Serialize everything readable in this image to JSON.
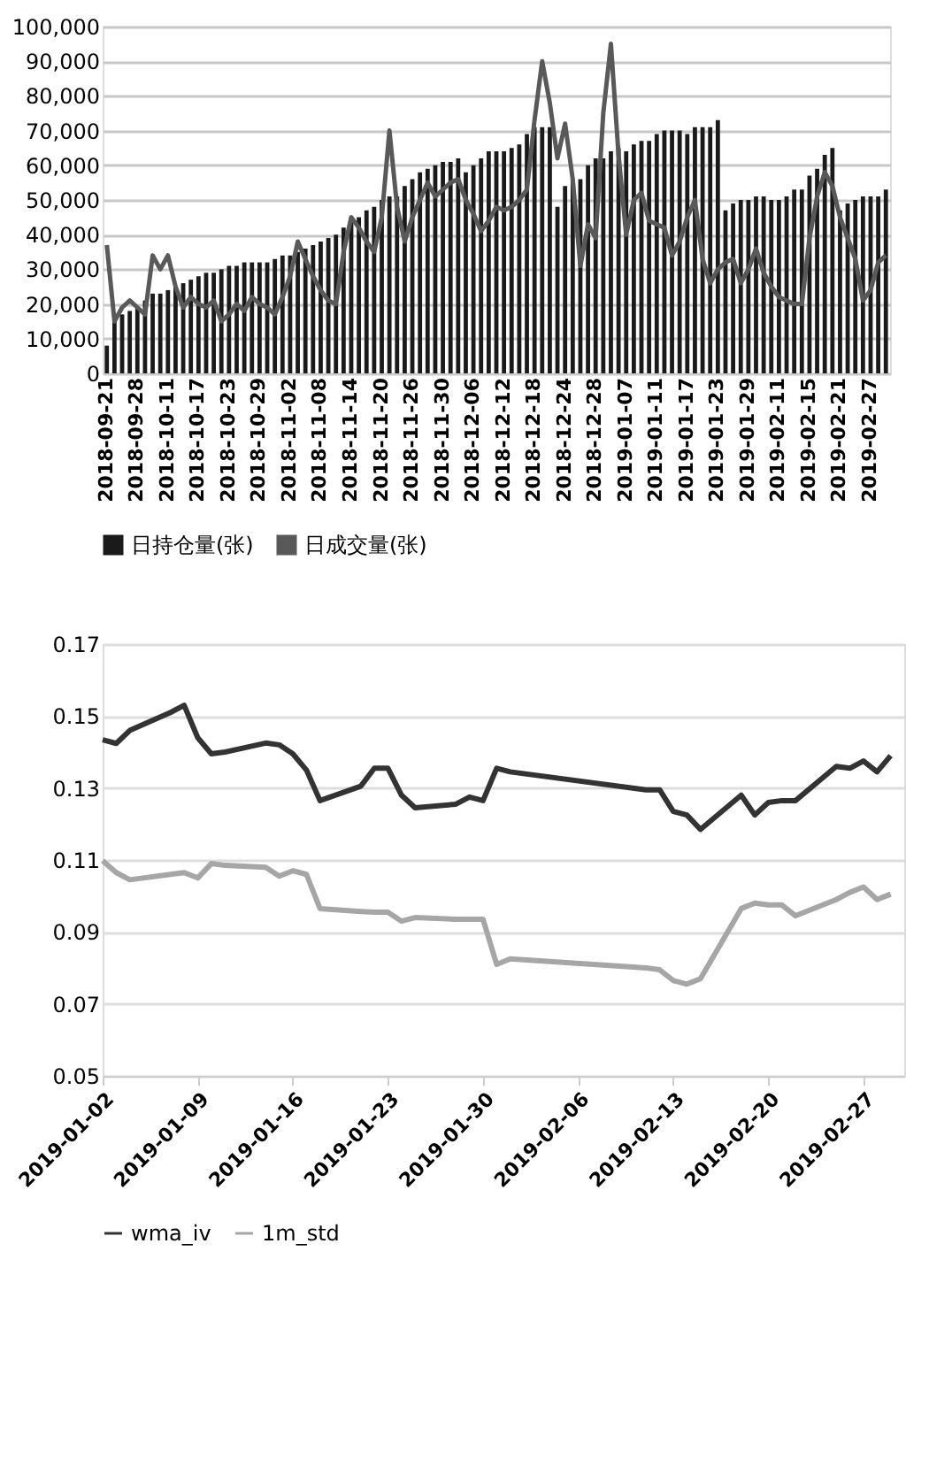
{
  "chart_data": [
    {
      "type": "bar",
      "categories": [
        "2018-09-21",
        null,
        null,
        null,
        "2018-09-28",
        null,
        null,
        null,
        "2018-10-11",
        null,
        null,
        null,
        "2018-10-17",
        null,
        null,
        null,
        "2018-10-23",
        null,
        null,
        null,
        "2018-10-29",
        null,
        null,
        null,
        "2018-11-02",
        null,
        null,
        null,
        "2018-11-08",
        null,
        null,
        null,
        "2018-11-14",
        null,
        null,
        null,
        "2018-11-20",
        null,
        null,
        null,
        "2018-11-26",
        null,
        null,
        null,
        "2018-11-30",
        null,
        null,
        null,
        "2018-12-06",
        null,
        null,
        null,
        "2018-12-12",
        null,
        null,
        null,
        "2018-12-18",
        null,
        null,
        null,
        "2018-12-24",
        null,
        null,
        null,
        "2018-12-28",
        null,
        null,
        null,
        "2019-01-07",
        null,
        null,
        null,
        "2019-01-11",
        null,
        null,
        null,
        "2019-01-17",
        null,
        null,
        null,
        "2019-01-23",
        null,
        null,
        null,
        "2019-01-29",
        null,
        null,
        null,
        "2019-02-11",
        null,
        null,
        null,
        "2019-02-15",
        null,
        null,
        null,
        "2019-02-21",
        null,
        null,
        null,
        "2019-02-27",
        null,
        null
      ],
      "series": [
        {
          "name": "日持仓量(张)",
          "type": "bar",
          "color": "#1a1a1a",
          "values": [
            8000,
            15000,
            17000,
            18000,
            19000,
            21000,
            23000,
            23000,
            24000,
            25000,
            26000,
            27000,
            28000,
            29000,
            29000,
            30000,
            31000,
            31000,
            32000,
            32000,
            32000,
            32000,
            33000,
            34000,
            34000,
            35000,
            36000,
            37000,
            38000,
            39000,
            40000,
            42000,
            44000,
            45000,
            47000,
            48000,
            50000,
            51000,
            51000,
            54000,
            56000,
            58000,
            59000,
            60000,
            61000,
            61000,
            62000,
            58000,
            60000,
            62000,
            64000,
            64000,
            64000,
            65000,
            66000,
            69000,
            71000,
            71000,
            71000,
            48000,
            54000,
            56000,
            56000,
            60000,
            62000,
            62000,
            64000,
            65000,
            64000,
            66000,
            67000,
            67000,
            69000,
            70000,
            70000,
            70000,
            69000,
            71000,
            71000,
            71000,
            73000,
            47000,
            49000,
            50000,
            50000,
            51000,
            51000,
            50000,
            50000,
            51000,
            53000,
            53000,
            57000,
            59000,
            63000,
            65000,
            47000,
            49000,
            50000,
            51000,
            51000,
            51000,
            53000
          ]
        },
        {
          "name": "日成交量(张)",
          "type": "line",
          "color": "#595959",
          "values": [
            37000,
            15000,
            19000,
            21000,
            19000,
            17000,
            34000,
            30000,
            34000,
            25000,
            19000,
            22000,
            20000,
            19000,
            21000,
            15000,
            17000,
            20000,
            18000,
            22000,
            20000,
            19000,
            17000,
            22000,
            28000,
            38000,
            33000,
            28000,
            24000,
            21000,
            20000,
            35000,
            45000,
            42000,
            38000,
            35000,
            45000,
            70000,
            48000,
            38000,
            45000,
            50000,
            55000,
            51000,
            53000,
            55000,
            56000,
            50000,
            46000,
            41000,
            44000,
            48000,
            47000,
            48000,
            50000,
            53000,
            73000,
            90000,
            78000,
            62000,
            72000,
            56000,
            31000,
            43000,
            39000,
            75000,
            95000,
            63000,
            40000,
            50000,
            52000,
            44000,
            43000,
            42000,
            34000,
            38000,
            45000,
            50000,
            33000,
            26000,
            30000,
            32000,
            33000,
            26000,
            30000,
            36000,
            29000,
            25000,
            22000,
            21000,
            20000,
            20000,
            39000,
            51000,
            58000,
            54000,
            45000,
            39000,
            33000,
            21000,
            24000,
            32000,
            34000
          ]
        }
      ],
      "ylim": [
        0,
        100000
      ],
      "yticks": [
        {
          "value": 0,
          "label": "0"
        },
        {
          "value": 10000,
          "label": "10,000"
        },
        {
          "value": 20000,
          "label": "20,000"
        },
        {
          "value": 30000,
          "label": "30,000"
        },
        {
          "value": 40000,
          "label": "40,000"
        },
        {
          "value": 50000,
          "label": "50,000"
        },
        {
          "value": 60000,
          "label": "60,000"
        },
        {
          "value": 70000,
          "label": "70,000"
        },
        {
          "value": 80000,
          "label": "80,000"
        },
        {
          "value": 90000,
          "label": "90,000"
        },
        {
          "value": 100000,
          "label": "100,000"
        }
      ],
      "grid": "y",
      "legend": "bottom",
      "marker": "none",
      "line_style": "solid"
    },
    {
      "type": "line",
      "x": [
        "2019-01-02",
        "2019-01-03",
        "2019-01-04",
        "2019-01-07",
        "2019-01-08",
        "2019-01-09",
        "2019-01-10",
        "2019-01-11",
        "2019-01-14",
        "2019-01-15",
        "2019-01-16",
        "2019-01-17",
        "2019-01-18",
        "2019-01-21",
        "2019-01-22",
        "2019-01-23",
        "2019-01-24",
        "2019-01-25",
        "2019-01-28",
        "2019-01-29",
        "2019-01-30",
        "2019-01-31",
        "2019-02-01",
        "2019-02-11",
        "2019-02-12",
        "2019-02-13",
        "2019-02-14",
        "2019-02-15",
        "2019-02-18",
        "2019-02-19",
        "2019-02-20",
        "2019-02-21",
        "2019-02-22",
        "2019-02-25",
        "2019-02-26",
        "2019-02-27",
        "2019-02-28",
        "2019-03-01"
      ],
      "series": [
        {
          "name": "wma_iv",
          "color": "#333333",
          "values": [
            0.1434,
            0.1424,
            0.146,
            0.151,
            0.153,
            0.144,
            0.1395,
            0.14,
            0.1425,
            0.142,
            0.1395,
            0.135,
            0.1265,
            0.1305,
            0.1355,
            0.1355,
            0.128,
            0.1245,
            0.1255,
            0.1275,
            0.1265,
            0.1355,
            0.1345,
            0.1295,
            0.1295,
            0.1235,
            0.1225,
            0.1185,
            0.128,
            0.1225,
            0.126,
            0.1265,
            0.1265,
            0.136,
            0.1355,
            0.1375,
            0.1345,
            0.139
          ]
        },
        {
          "name": "1m_std",
          "color": "#a6a6a6",
          "values": [
            0.1098,
            0.1065,
            0.1045,
            0.106,
            0.1065,
            0.105,
            0.109,
            0.1085,
            0.108,
            0.1055,
            0.107,
            0.106,
            0.0965,
            0.0957,
            0.0955,
            0.0955,
            0.093,
            0.094,
            0.0935,
            0.0935,
            0.0935,
            0.081,
            0.0825,
            0.08,
            0.0795,
            0.0765,
            0.0755,
            0.077,
            0.0965,
            0.098,
            0.0975,
            0.0975,
            0.0945,
            0.099,
            0.101,
            0.1025,
            0.099,
            0.1005
          ]
        }
      ],
      "xlim": [
        "2019-01-02",
        "2019-03-02"
      ],
      "xticks": [
        "2019-01-02",
        "2019-01-09",
        "2019-01-16",
        "2019-01-23",
        "2019-01-30",
        "2019-02-06",
        "2019-02-13",
        "2019-02-20",
        "2019-02-27"
      ],
      "ylim": [
        0.05,
        0.17
      ],
      "yticks": [
        0.05,
        0.07,
        0.09,
        0.11,
        0.13,
        0.15,
        0.17
      ],
      "grid": "y",
      "legend": "bottom",
      "marker": "none",
      "line_style": "solid"
    }
  ]
}
